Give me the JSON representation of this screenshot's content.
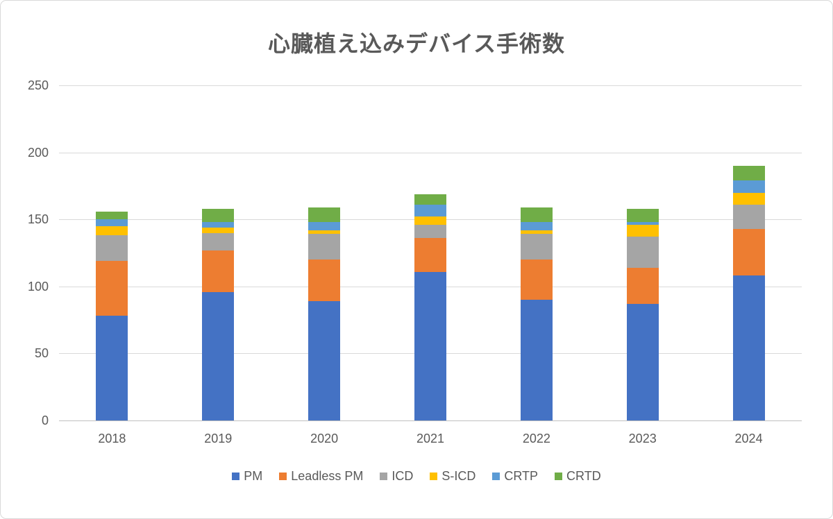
{
  "title": "心臓植え込みデバイス手術数",
  "text_color": "#595959",
  "gridline_color": "#d9d9d9",
  "axis_line_color": "#bfbfbf",
  "chart_data": {
    "type": "bar",
    "stacked": true,
    "title": "心臓植え込みデバイス手術数",
    "categories": [
      "2018",
      "2019",
      "2020",
      "2021",
      "2022",
      "2023",
      "2024"
    ],
    "series": [
      {
        "name": "PM",
        "color": "#4472C4",
        "values": [
          78,
          96,
          89,
          111,
          90,
          87,
          108
        ]
      },
      {
        "name": "Leadless PM",
        "color": "#ED7D31",
        "values": [
          41,
          31,
          31,
          25,
          30,
          27,
          35
        ]
      },
      {
        "name": "ICD",
        "color": "#A5A5A5",
        "values": [
          19,
          13,
          19,
          10,
          19,
          23,
          18
        ]
      },
      {
        "name": "S-ICD",
        "color": "#FFC000",
        "values": [
          7,
          4,
          3,
          6,
          3,
          9,
          9
        ]
      },
      {
        "name": "CRTP",
        "color": "#5B9BD5",
        "values": [
          5,
          4,
          6,
          9,
          6,
          2,
          9
        ]
      },
      {
        "name": "CRTD",
        "color": "#70AD47",
        "values": [
          6,
          10,
          11,
          8,
          11,
          10,
          11
        ]
      }
    ],
    "totals": [
      156,
      158,
      159,
      169,
      159,
      158,
      190
    ],
    "xlabel": "",
    "ylabel": "",
    "ylim": [
      0,
      250
    ],
    "yticks": [
      0,
      50,
      100,
      150,
      200,
      250
    ],
    "grid": true,
    "legend_position": "bottom"
  }
}
